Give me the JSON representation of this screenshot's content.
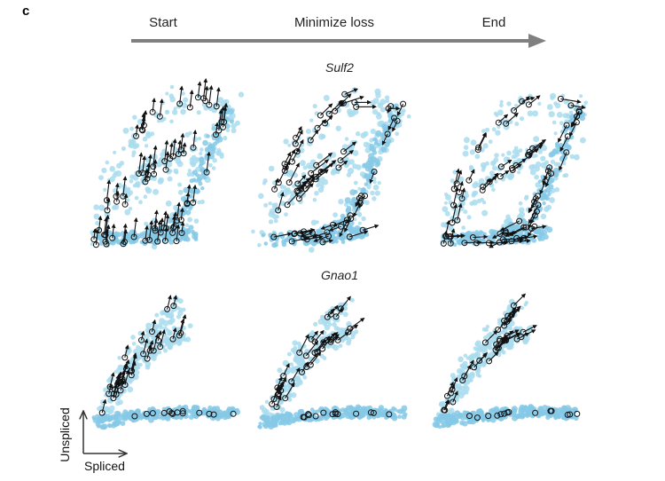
{
  "figure": {
    "panel_letter": "c",
    "stages": [
      "Start",
      "Minimize loss",
      "End"
    ],
    "genes": [
      "Sulf2",
      "Gnao1"
    ],
    "axes": {
      "x_label": "Spliced",
      "y_label": "Unspliced"
    },
    "colors": {
      "cells": "#a9dcef",
      "cells_dense": "#86c9e6",
      "arrow": "#111111",
      "progress_arrow": "#808080"
    }
  }
}
